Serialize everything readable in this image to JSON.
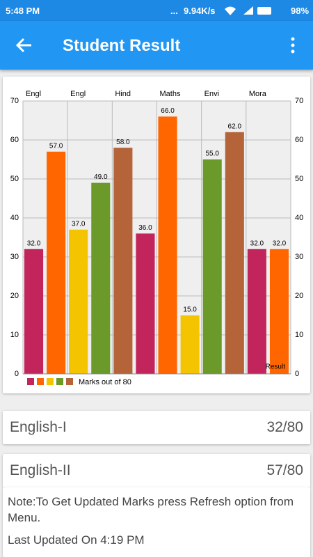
{
  "status_bar": {
    "time": "5:48 PM",
    "speed": "9.94K/s",
    "battery": "98%"
  },
  "app_bar": {
    "title": "Student Result"
  },
  "chart_data": {
    "type": "bar",
    "categories": [
      "Engl",
      null,
      "Engl",
      null,
      "Hind",
      null,
      "Maths",
      null,
      "Envi",
      null,
      "Mora",
      null
    ],
    "series": [
      {
        "name": "Marks out of 80",
        "colors": [
          "#c2255c",
          "#ff6600",
          "#f5c400",
          "#6b9a2a",
          "#b5643a"
        ],
        "values": [
          32,
          57,
          37,
          49,
          58,
          36,
          66,
          15,
          55,
          62,
          32,
          32
        ],
        "value_labels": [
          "32.0",
          "57.0",
          "37.0",
          "49.0",
          "58.0",
          "36.0",
          "66.0",
          "15.0",
          "55.0",
          "62.0",
          "32.0",
          "32.0"
        ]
      }
    ],
    "ylim": [
      0,
      70
    ],
    "yticks": [
      0,
      10,
      20,
      30,
      40,
      50,
      60,
      70
    ],
    "grid": true,
    "description": "Result"
  },
  "results": [
    {
      "subject": "English-I",
      "score": "32/80"
    },
    {
      "subject": "English-II",
      "score": "57/80"
    }
  ],
  "note": {
    "text": "Note:To Get Updated Marks press Refresh option from Menu.",
    "updated": "Last Updated On 4:19 PM"
  }
}
